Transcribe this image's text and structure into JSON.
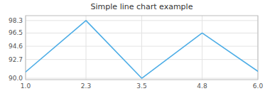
{
  "chart_data": {
    "type": "line",
    "title": "Simple line chart example",
    "x": [
      1.0,
      2.3,
      3.5,
      4.8,
      6.0
    ],
    "values": [
      90.9,
      98.3,
      90.0,
      96.5,
      91.0
    ],
    "color": "#4dade6",
    "xlim": [
      1.0,
      6.0
    ],
    "ylim": [
      89.8,
      99.0
    ],
    "xticks": [
      {
        "value": 1.0,
        "label": "1.0"
      },
      2.3,
      3.5,
      4.8,
      {
        "value": 6.0,
        "label": "6.0"
      }
    ],
    "yticks": [
      {
        "value": 90.0,
        "label": "90.0"
      },
      92.7,
      94.6,
      96.5,
      98.3
    ],
    "grid": true
  }
}
